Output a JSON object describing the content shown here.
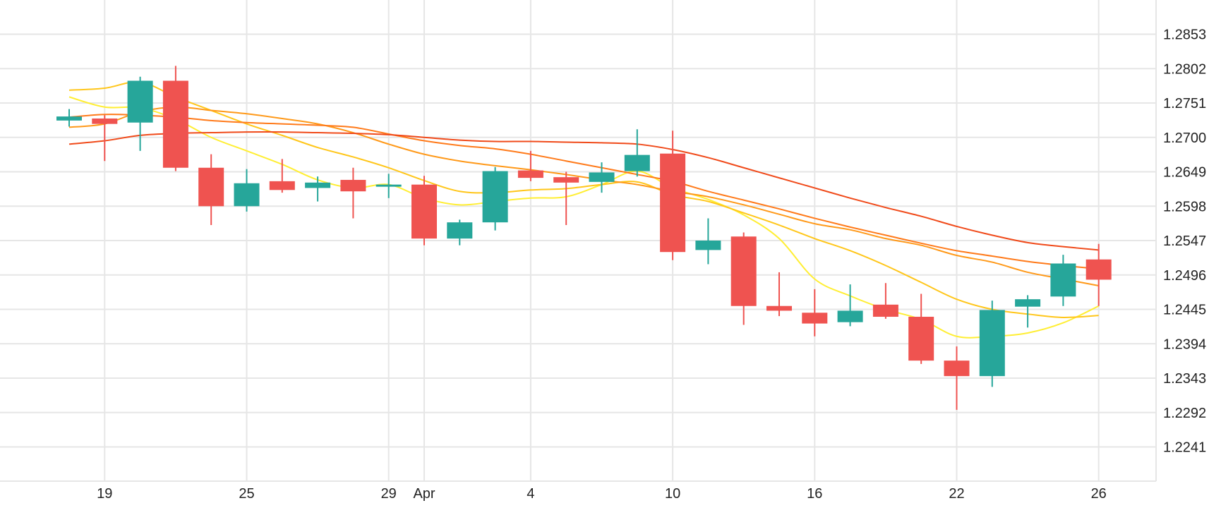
{
  "chart_data": {
    "type": "candlestick",
    "title": "",
    "xlabel": "",
    "ylabel": "",
    "ylim": [
      1.219,
      1.2904
    ],
    "grid": true,
    "legend": "none",
    "y_ticks": [
      "1.2853",
      "1.2802",
      "1.2751",
      "1.2700",
      "1.2649",
      "1.2598",
      "1.2547",
      "1.2496",
      "1.2445",
      "1.2394",
      "1.2343",
      "1.2292",
      "1.2241"
    ],
    "x_ticks": [
      {
        "label": "19",
        "index": 1
      },
      {
        "label": "25",
        "index": 5
      },
      {
        "label": "29",
        "index": 9
      },
      {
        "label": "Apr",
        "index": 10
      },
      {
        "label": "4",
        "index": 13
      },
      {
        "label": "10",
        "index": 17
      },
      {
        "label": "16",
        "index": 21
      },
      {
        "label": "22",
        "index": 25
      },
      {
        "label": "26",
        "index": 29
      }
    ],
    "candles": [
      {
        "o": 1.2725,
        "h": 1.2742,
        "l": 1.2716,
        "c": 1.2731
      },
      {
        "o": 1.2728,
        "h": 1.2733,
        "l": 1.2665,
        "c": 1.272
      },
      {
        "o": 1.2722,
        "h": 1.279,
        "l": 1.268,
        "c": 1.2784
      },
      {
        "o": 1.2784,
        "h": 1.2806,
        "l": 1.265,
        "c": 1.2655
      },
      {
        "o": 1.2655,
        "h": 1.2675,
        "l": 1.257,
        "c": 1.2598
      },
      {
        "o": 1.2598,
        "h": 1.2653,
        "l": 1.259,
        "c": 1.2632
      },
      {
        "o": 1.2635,
        "h": 1.2668,
        "l": 1.2618,
        "c": 1.2622
      },
      {
        "o": 1.2625,
        "h": 1.2642,
        "l": 1.2605,
        "c": 1.2633
      },
      {
        "o": 1.2637,
        "h": 1.2655,
        "l": 1.258,
        "c": 1.262
      },
      {
        "o": 1.2629,
        "h": 1.2646,
        "l": 1.261,
        "c": 1.263
      },
      {
        "o": 1.263,
        "h": 1.2643,
        "l": 1.254,
        "c": 1.255
      },
      {
        "o": 1.255,
        "h": 1.2578,
        "l": 1.254,
        "c": 1.2574
      },
      {
        "o": 1.2574,
        "h": 1.2656,
        "l": 1.2562,
        "c": 1.265
      },
      {
        "o": 1.2651,
        "h": 1.268,
        "l": 1.2635,
        "c": 1.264
      },
      {
        "o": 1.2641,
        "h": 1.2649,
        "l": 1.257,
        "c": 1.2633
      },
      {
        "o": 1.2634,
        "h": 1.2663,
        "l": 1.2618,
        "c": 1.2648
      },
      {
        "o": 1.265,
        "h": 1.2712,
        "l": 1.2642,
        "c": 1.2674
      },
      {
        "o": 1.2676,
        "h": 1.271,
        "l": 1.2518,
        "c": 1.253
      },
      {
        "o": 1.2533,
        "h": 1.258,
        "l": 1.2512,
        "c": 1.2547
      },
      {
        "o": 1.2553,
        "h": 1.2559,
        "l": 1.2422,
        "c": 1.245
      },
      {
        "o": 1.245,
        "h": 1.25,
        "l": 1.2435,
        "c": 1.2443
      },
      {
        "o": 1.244,
        "h": 1.2475,
        "l": 1.2405,
        "c": 1.2424
      },
      {
        "o": 1.2426,
        "h": 1.2482,
        "l": 1.242,
        "c": 1.2443
      },
      {
        "o": 1.2452,
        "h": 1.2484,
        "l": 1.2431,
        "c": 1.2434
      },
      {
        "o": 1.2434,
        "h": 1.2468,
        "l": 1.2364,
        "c": 1.2369
      },
      {
        "o": 1.2369,
        "h": 1.239,
        "l": 1.2296,
        "c": 1.2346
      },
      {
        "o": 1.2346,
        "h": 1.2458,
        "l": 1.233,
        "c": 1.2444
      },
      {
        "o": 1.2449,
        "h": 1.2466,
        "l": 1.2418,
        "c": 1.246
      },
      {
        "o": 1.2464,
        "h": 1.2526,
        "l": 1.245,
        "c": 1.2513
      },
      {
        "o": 1.2519,
        "h": 1.2542,
        "l": 1.245,
        "c": 1.2489
      }
    ],
    "moving_averages": [
      {
        "color": "#ffee33",
        "values": [
          1.276,
          1.2745,
          1.2744,
          1.2727,
          1.27,
          1.268,
          1.266,
          1.2637,
          1.2625,
          1.263,
          1.261,
          1.26,
          1.2605,
          1.261,
          1.2612,
          1.263,
          1.265,
          1.2625,
          1.2608,
          1.2585,
          1.255,
          1.249,
          1.2465,
          1.2445,
          1.243,
          1.2405,
          1.2405,
          1.241,
          1.2425,
          1.245
        ]
      },
      {
        "color": "#ffc61a",
        "values": [
          1.277,
          1.2773,
          1.2782,
          1.276,
          1.274,
          1.272,
          1.2703,
          1.2685,
          1.2671,
          1.2655,
          1.2636,
          1.262,
          1.2618,
          1.2622,
          1.2624,
          1.263,
          1.2634,
          1.2615,
          1.2605,
          1.2588,
          1.257,
          1.255,
          1.2532,
          1.251,
          1.2485,
          1.246,
          1.2445,
          1.2438,
          1.2433,
          1.2436
        ]
      },
      {
        "color": "#ff9919",
        "values": [
          1.2715,
          1.272,
          1.2738,
          1.2745,
          1.274,
          1.2735,
          1.2728,
          1.272,
          1.2707,
          1.269,
          1.2675,
          1.2665,
          1.2658,
          1.2652,
          1.2645,
          1.2637,
          1.263,
          1.262,
          1.2612,
          1.26,
          1.2586,
          1.2572,
          1.2563,
          1.255,
          1.254,
          1.2525,
          1.2515,
          1.25,
          1.249,
          1.248
        ]
      },
      {
        "color": "#ff7a1a",
        "values": [
          1.273,
          1.2734,
          1.2733,
          1.273,
          1.2725,
          1.2722,
          1.272,
          1.2718,
          1.2715,
          1.2705,
          1.2695,
          1.2688,
          1.2683,
          1.2675,
          1.2665,
          1.2655,
          1.2645,
          1.2635,
          1.262,
          1.2607,
          1.2594,
          1.258,
          1.2567,
          1.2555,
          1.2543,
          1.2532,
          1.2524,
          1.2516,
          1.251,
          1.2505
        ]
      },
      {
        "color": "#f04a1a",
        "values": [
          1.269,
          1.2695,
          1.2703,
          1.2706,
          1.2707,
          1.2708,
          1.2708,
          1.2707,
          1.2706,
          1.2704,
          1.27,
          1.2696,
          1.2694,
          1.2694,
          1.2693,
          1.2692,
          1.269,
          1.2682,
          1.267,
          1.2655,
          1.264,
          1.2625,
          1.261,
          1.2596,
          1.2583,
          1.2568,
          1.2555,
          1.2544,
          1.2538,
          1.2533
        ]
      }
    ],
    "colors": {
      "up": "#26a69a",
      "down": "#ef5350",
      "grid": "#e6e6e6",
      "text": "#222222"
    }
  }
}
